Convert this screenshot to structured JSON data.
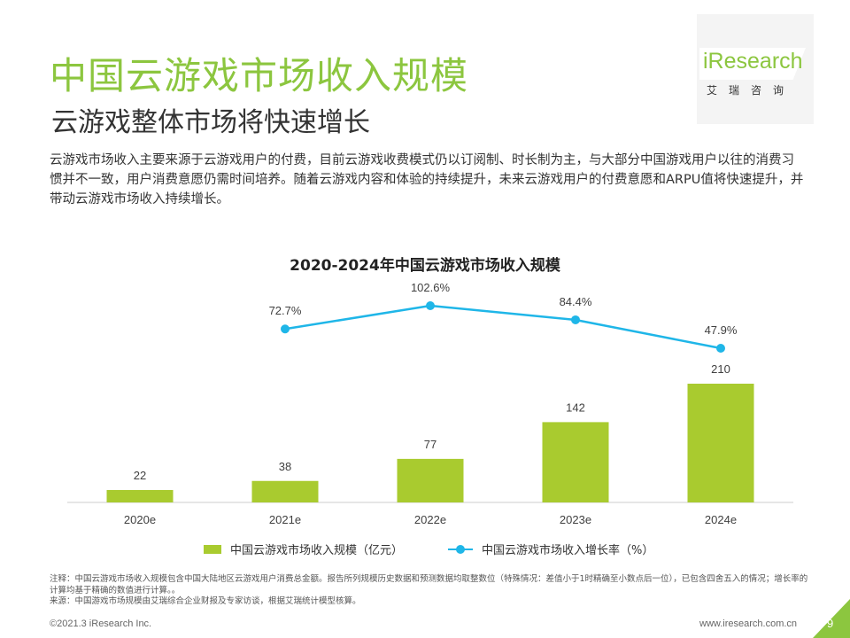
{
  "header": {
    "title": "中国云游戏市场收入规模",
    "subtitle": "云游戏整体市场将快速增长"
  },
  "logo": {
    "name": "iResearch",
    "sub": "艾瑞咨询"
  },
  "description": "云游戏市场收入主要来源于云游戏用户的付费，目前云游戏收费模式仍以订阅制、时长制为主，与大部分中国游戏用户以往的消费习惯并不一致，用户消费意愿仍需时间培养。随着云游戏内容和体验的持续提升，未来云游戏用户的付费意愿和ARPU值将快速提升，并带动云游戏市场收入持续增长。",
  "chart_data": {
    "type": "bar",
    "title": "2020-2024年中国云游戏市场收入规模",
    "categories": [
      "2020e",
      "2021e",
      "2022e",
      "2023e",
      "2024e"
    ],
    "series": [
      {
        "name": "中国云游戏市场收入规模（亿元）",
        "type": "bar",
        "values": [
          22,
          38,
          77,
          142,
          210
        ],
        "labels": [
          "22",
          "38",
          "77",
          "142",
          "210"
        ],
        "color": "#a9cb2f"
      },
      {
        "name": "中国云游戏市场收入增长率（%）",
        "type": "line",
        "values": [
          null,
          72.7,
          102.6,
          84.4,
          47.9
        ],
        "labels": [
          "",
          "72.7%",
          "102.6%",
          "84.4%",
          "47.9%"
        ],
        "color": "#1fb6e8"
      }
    ],
    "ylim": [
      0,
      210
    ],
    "y2lim": [
      47.9,
      102.6
    ],
    "grid": false,
    "legend": "bottom"
  },
  "notes": {
    "line1": "注释：中国云游戏市场收入规模包含中国大陆地区云游戏用户消费总金额。报告所列规模历史数据和预测数据均取整数位（特殊情况：差值小于1时精确至小数点后一位），已包含四舍五入的情况；增长率的计算均基于精确的数值进行计算。。",
    "line2": "来源：中国游戏市场规模由艾瑞综合企业财报及专家访谈，根据艾瑞统计模型核算。"
  },
  "footer": {
    "copyright": "©2021.3 iResearch Inc.",
    "url": "www.iresearch.com.cn",
    "page": "9"
  }
}
